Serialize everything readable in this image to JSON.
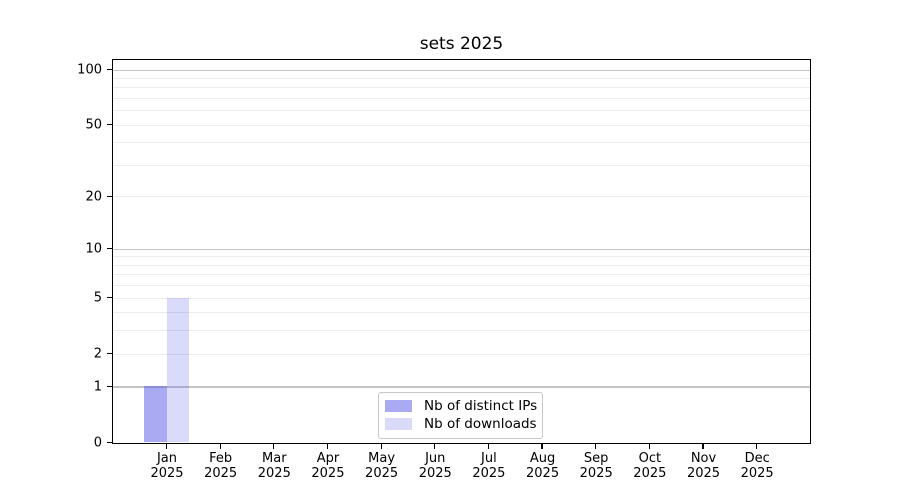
{
  "window": {
    "background": "#ffffff"
  },
  "chart_data": {
    "type": "bar",
    "title": "sets 2025",
    "categories": [
      "Jan 2025",
      "Feb 2025",
      "Mar 2025",
      "Apr 2025",
      "May 2025",
      "Jun 2025",
      "Jul 2025",
      "Aug 2025",
      "Sep 2025",
      "Oct 2025",
      "Nov 2025",
      "Dec 2025"
    ],
    "series": [
      {
        "name": "Nb of distinct IPs",
        "fill": "rgba(85,85,230,0.5)",
        "values": [
          1,
          0,
          0,
          0,
          0,
          0,
          0,
          0,
          0,
          0,
          0,
          0
        ]
      },
      {
        "name": "Nb of downloads",
        "fill": "rgba(85,85,230,0.22)",
        "values": [
          5,
          0,
          0,
          0,
          0,
          0,
          0,
          0,
          0,
          0,
          0,
          0
        ]
      }
    ],
    "y_axis": {
      "scale": "log1p",
      "ylim": [
        0,
        100
      ],
      "tick_values": [
        0,
        1,
        2,
        5,
        10,
        20,
        50,
        100
      ],
      "major_gridlines": [
        1,
        10,
        100
      ],
      "minor_gridlines": [
        2,
        3,
        4,
        5,
        6,
        7,
        8,
        9,
        20,
        30,
        40,
        50,
        60,
        70,
        80,
        90
      ]
    },
    "x_axis": {
      "label_line2": "2025"
    },
    "legend_position": "lower center",
    "grid": true,
    "colors": {
      "major_grid": "#c4c4c4",
      "minor_grid": "#ebebeb",
      "spine": "#000000",
      "legend_border": "#c8c8c8",
      "text": "#000000"
    }
  }
}
